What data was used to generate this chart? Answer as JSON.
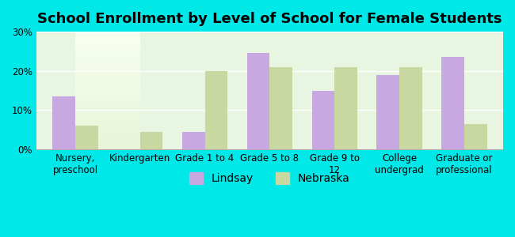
{
  "title": "School Enrollment by Level of School for Female Students",
  "categories": [
    "Nursery,\npreschool",
    "Kindergarten",
    "Grade 1 to 4",
    "Grade 5 to 8",
    "Grade 9 to\n12",
    "College\nundergrad",
    "Graduate or\nprofessional"
  ],
  "lindsay_values": [
    13.5,
    0,
    4.5,
    24.5,
    15.0,
    19.0,
    23.5
  ],
  "nebraska_values": [
    6.0,
    4.5,
    20.0,
    21.0,
    21.0,
    21.0,
    6.5
  ],
  "lindsay_color": "#c8a8e0",
  "nebraska_color": "#c8d8a0",
  "background_color": "#00e8e8",
  "plot_bg_color_top": "#f0fff0",
  "plot_bg_color_bottom": "#f8fff0",
  "ylim": [
    0,
    30
  ],
  "yticks": [
    0,
    10,
    20,
    30
  ],
  "ytick_labels": [
    "0%",
    "10%",
    "20%",
    "30%"
  ],
  "bar_width": 0.35,
  "legend_labels": [
    "Lindsay",
    "Nebraska"
  ],
  "title_fontsize": 13,
  "tick_fontsize": 8.5,
  "legend_fontsize": 10
}
